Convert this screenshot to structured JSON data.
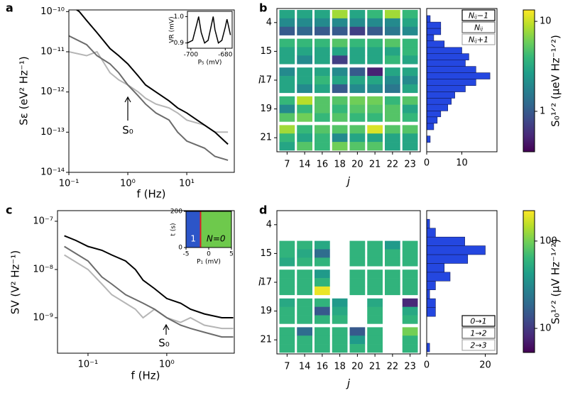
{
  "chart_data": [
    {
      "type": "line",
      "panel": "a",
      "xlabel": "f (Hz)",
      "ylabel": "Sε (eV² Hz⁻¹)",
      "annotation": "S₀",
      "xlog": true,
      "ylog": true,
      "xlim": [
        0.1,
        64
      ],
      "ylim": [
        1e-14,
        1.1e-10
      ],
      "xticks": [
        {
          "value": 0.1,
          "label": "10⁻¹"
        },
        {
          "value": 1,
          "label": "10⁰"
        },
        {
          "value": 10,
          "label": "10¹"
        }
      ],
      "yticks": [
        {
          "value": 1e-14,
          "label": "10⁻¹⁴"
        },
        {
          "value": 1e-13,
          "label": "10⁻¹³"
        },
        {
          "value": 1e-12,
          "label": "10⁻¹²"
        },
        {
          "value": 1e-11,
          "label": "10⁻¹¹"
        },
        {
          "value": 1e-10,
          "label": "10⁻¹⁰"
        }
      ],
      "series": [
        {
          "color": "#b5b5b5",
          "x": [
            0.1,
            0.2,
            0.3,
            0.5,
            0.7,
            1,
            1.5,
            2,
            3,
            5,
            7,
            10,
            20,
            30,
            50
          ],
          "values": [
            1e-11,
            8e-12,
            1e-11,
            3e-12,
            2e-12,
            1.5e-12,
            1e-12,
            7e-13,
            5e-13,
            4e-13,
            3e-13,
            2e-13,
            1.5e-13,
            1e-13,
            1e-13
          ]
        },
        {
          "color": "#6b6b6b",
          "x": [
            0.1,
            0.2,
            0.3,
            0.5,
            0.7,
            1,
            1.5,
            2,
            3,
            5,
            7,
            10,
            20,
            30,
            50
          ],
          "values": [
            2.5e-11,
            1.5e-11,
            8e-12,
            5e-12,
            3e-12,
            1.5e-12,
            8e-13,
            5e-13,
            3e-13,
            2e-13,
            1e-13,
            6e-14,
            4e-14,
            2.5e-14,
            2e-14
          ]
        },
        {
          "color": "#000000",
          "x": [
            0.1,
            0.15,
            0.2,
            0.3,
            0.5,
            0.7,
            1,
            1.5,
            2,
            3,
            5,
            7,
            10,
            20,
            30,
            50
          ],
          "values": [
            1.5e-10,
            1e-10,
            6e-11,
            3e-11,
            1.2e-11,
            8e-12,
            5e-12,
            2.5e-12,
            1.5e-12,
            1e-12,
            6e-13,
            4e-13,
            3e-13,
            1.5e-13,
            1e-13,
            5e-14
          ]
        }
      ],
      "inset": {
        "type": "line",
        "xlabel": "P₅ (mV)",
        "ylabel": "VR (mV)",
        "xlim": [
          -702,
          -676
        ],
        "ylim": [
          0.88,
          1.02
        ],
        "xticks": [
          -700,
          -680
        ],
        "yticks": [
          0.9,
          {
            "value": 1,
            "label": "1.0"
          }
        ],
        "series": [
          {
            "color": "#000000",
            "x": [
              -702,
              -699,
              -697,
              -695.5,
              -694,
              -692,
              -690,
              -688,
              -687,
              -686,
              -684,
              -682,
              -680,
              -679,
              -678,
              -677
            ],
            "values": [
              0.9,
              0.91,
              0.96,
              1.0,
              0.94,
              0.9,
              0.91,
              0.97,
              1.0,
              0.95,
              0.9,
              0.91,
              0.96,
              0.99,
              0.96,
              0.93
            ]
          }
        ]
      }
    },
    {
      "type": "heatmap",
      "panel": "b",
      "xlabel": "j",
      "ylabel": "i",
      "categories": [
        7,
        14,
        16,
        18,
        20,
        21,
        22,
        23
      ],
      "row_groups": [
        4,
        15,
        17,
        19,
        21
      ],
      "values": [
        [
          3,
          3,
          3,
          8,
          3,
          4,
          8,
          4
        ],
        [
          2,
          2,
          2,
          2,
          2,
          2,
          2,
          3
        ],
        [
          1,
          1.2,
          1,
          1,
          0.7,
          1,
          1.5,
          2
        ],
        [
          4,
          4,
          4,
          5,
          4,
          4,
          5,
          4
        ],
        [
          3,
          3,
          3,
          3,
          3,
          3,
          3,
          4
        ],
        [
          3,
          2,
          3,
          0.7,
          3,
          3,
          4,
          3
        ],
        [
          2,
          3,
          3,
          2,
          1,
          0.5,
          3,
          3
        ],
        [
          3,
          3,
          4,
          3,
          3,
          3,
          2,
          2
        ],
        [
          3,
          2,
          3,
          1,
          2,
          2,
          1.5,
          3
        ],
        [
          4,
          9,
          5,
          5,
          6,
          6,
          4,
          5
        ],
        [
          2,
          4,
          5,
          4,
          5,
          5,
          5,
          3
        ],
        [
          5,
          6,
          4,
          5,
          4,
          4,
          5,
          4
        ],
        [
          8,
          4,
          5,
          5,
          5,
          11,
          5,
          5
        ],
        [
          4,
          3,
          4,
          2,
          3,
          3,
          3,
          3
        ],
        [
          3,
          5,
          4,
          6,
          5,
          5,
          3,
          3
        ]
      ],
      "colorbar": {
        "label": "S₀¹ᐟ² (µeV Hz⁻¹ᐟ²)",
        "log": true,
        "lim": [
          0.355,
          13.4
        ],
        "ticks": [
          1,
          10
        ]
      },
      "histogram": {
        "color": "#2447e0",
        "xlim": [
          0,
          20
        ],
        "xticks": [
          0,
          10
        ],
        "bins": [
          0.45,
          0.53,
          0.62,
          0.73,
          0.86,
          1.0,
          1.18,
          1.38,
          1.62,
          1.9,
          2.24,
          2.63,
          3.09,
          3.63,
          4.27,
          5.0,
          5.9,
          6.9,
          8.1,
          9.5,
          11.2
        ],
        "counts": [
          1,
          0,
          2,
          3,
          4,
          6,
          7,
          8,
          11,
          14,
          18,
          14,
          11,
          12,
          10,
          5,
          2,
          4,
          4,
          1
        ]
      },
      "legend_loc": "upper right",
      "legend": [
        {
          "label": "Nᵢⱼ−1",
          "color": "#000000"
        },
        {
          "label": "Nᵢⱼ",
          "color": "#666666"
        },
        {
          "label": "Nᵢⱼ+1",
          "color": "#aaaaaa"
        }
      ]
    },
    {
      "type": "line",
      "panel": "c",
      "xlabel": "f (Hz)",
      "ylabel": "SV (V² Hz⁻¹)",
      "annotation": "S₀",
      "xlog": true,
      "ylog": true,
      "xlim": [
        0.041,
        7.2
      ],
      "ylim": [
        1.84e-10,
        1.66e-07
      ],
      "xticks": [
        {
          "value": 0.1,
          "label": "10⁻¹"
        },
        {
          "value": 1,
          "label": "10⁰"
        }
      ],
      "yticks": [
        {
          "value": 1e-09,
          "label": "10⁻⁹"
        },
        {
          "value": 1e-08,
          "label": "10⁻⁸"
        },
        {
          "value": 1e-07,
          "label": "10⁻⁷"
        }
      ],
      "series": [
        {
          "color": "#b5b5b5",
          "x": [
            0.05,
            0.1,
            0.15,
            0.2,
            0.3,
            0.4,
            0.5,
            0.7,
            1,
            1.5,
            2,
            3,
            5,
            7
          ],
          "values": [
            2e-08,
            1e-08,
            5e-09,
            3e-09,
            2e-09,
            1.5e-09,
            1e-09,
            1.5e-09,
            1e-09,
            8e-10,
            1e-09,
            7e-10,
            6e-10,
            6e-10
          ]
        },
        {
          "color": "#6b6b6b",
          "x": [
            0.05,
            0.1,
            0.15,
            0.2,
            0.3,
            0.5,
            0.7,
            1,
            1.5,
            2,
            3,
            5,
            7
          ],
          "values": [
            3e-08,
            1.5e-08,
            7e-09,
            5e-09,
            3e-09,
            2e-09,
            1.5e-09,
            1e-09,
            7e-10,
            6e-10,
            5e-10,
            4e-10,
            4e-10
          ]
        },
        {
          "color": "#000000",
          "x": [
            0.05,
            0.07,
            0.1,
            0.15,
            0.2,
            0.3,
            0.4,
            0.5,
            0.7,
            1,
            1.5,
            2,
            3,
            5,
            7
          ],
          "values": [
            5e-08,
            4e-08,
            3e-08,
            2.5e-08,
            2e-08,
            1.5e-08,
            1e-08,
            6e-09,
            4e-09,
            2.5e-09,
            2e-09,
            1.5e-09,
            1.2e-09,
            1e-09,
            1e-09
          ]
        }
      ],
      "inset": {
        "type": "image",
        "xlabel": "P₁ (mV)",
        "ylabel": "t (s)",
        "xlim": [
          -5,
          5
        ],
        "ylim": [
          0,
          200
        ],
        "xticks": [
          -5,
          0,
          5
        ],
        "yticks": [
          0,
          200
        ],
        "boundary": -1.8,
        "boundary_color": "#e02020",
        "regions": [
          {
            "label": "1",
            "color": "#2c55c8"
          },
          {
            "label": "N=0",
            "color": "#6ec94c"
          }
        ]
      }
    },
    {
      "type": "heatmap",
      "panel": "d",
      "xlabel": "j",
      "ylabel": "i",
      "categories": [
        7,
        14,
        16,
        18,
        20,
        21,
        22,
        23
      ],
      "row_groups": [
        4,
        15,
        17,
        19,
        21
      ],
      "values": [
        [
          null,
          null,
          null,
          null,
          null,
          null,
          null,
          null
        ],
        [
          null,
          null,
          null,
          null,
          null,
          null,
          null,
          null
        ],
        [
          null,
          null,
          null,
          null,
          null,
          null,
          null,
          null
        ],
        [
          60,
          60,
          50,
          null,
          60,
          60,
          40,
          60
        ],
        [
          60,
          50,
          20,
          null,
          60,
          60,
          60,
          60
        ],
        [
          50,
          60,
          60,
          null,
          60,
          60,
          60,
          60
        ],
        [
          60,
          60,
          40,
          null,
          60,
          60,
          60,
          60
        ],
        [
          60,
          60,
          60,
          null,
          60,
          60,
          60,
          60
        ],
        [
          60,
          60,
          200,
          null,
          60,
          60,
          60,
          60
        ],
        [
          50,
          60,
          60,
          40,
          null,
          50,
          null,
          8
        ],
        [
          60,
          60,
          15,
          50,
          null,
          60,
          null,
          50
        ],
        [
          60,
          60,
          60,
          60,
          null,
          60,
          null,
          60
        ],
        [
          60,
          20,
          60,
          60,
          15,
          60,
          null,
          100
        ],
        [
          60,
          60,
          60,
          60,
          40,
          60,
          null,
          60
        ],
        [
          60,
          60,
          60,
          60,
          60,
          60,
          null,
          60
        ]
      ],
      "colorbar": {
        "label": "S₀¹ᐟ² (µV Hz⁻¹ᐟ²)",
        "log": true,
        "lim": [
          5.3,
          223
        ],
        "ticks": [
          10,
          100
        ]
      },
      "histogram": {
        "color": "#2447e0",
        "xlim": [
          0,
          24
        ],
        "xticks": [
          0,
          20
        ],
        "bins": [
          5.6,
          7,
          8.9,
          11.2,
          14.1,
          17.8,
          22.4,
          28.2,
          35.5,
          44.7,
          56.2,
          70.8,
          89.1,
          112,
          141,
          178
        ],
        "counts": [
          1,
          0,
          0,
          0,
          3,
          3,
          1,
          3,
          8,
          6,
          14,
          20,
          13,
          3,
          1
        ]
      },
      "legend_loc": "lower right",
      "legend": [
        {
          "label": "0→1",
          "color": "#000000"
        },
        {
          "label": "1→2",
          "color": "#666666"
        },
        {
          "label": "2→3",
          "color": "#aaaaaa"
        }
      ]
    }
  ]
}
